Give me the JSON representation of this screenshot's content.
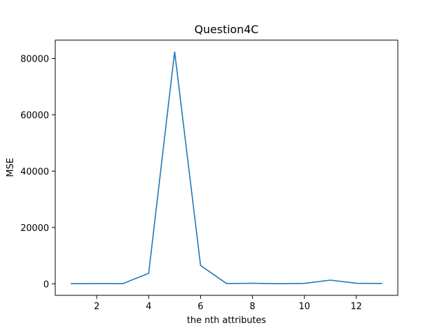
{
  "chart_data": {
    "type": "line",
    "title": "Question4C",
    "xlabel": "the nth attributes",
    "ylabel": "MSE",
    "xlim": [
      0.4,
      13.6
    ],
    "ylim": [
      -4100,
      86500
    ],
    "x_ticks": [
      2,
      4,
      6,
      8,
      10,
      12
    ],
    "y_ticks": [
      0,
      20000,
      40000,
      60000,
      80000
    ],
    "grid": false,
    "series": [
      {
        "color": "#1f77b4",
        "x": [
          1,
          2,
          3,
          4,
          5,
          6,
          7,
          8,
          9,
          10,
          11,
          12,
          13
        ],
        "y": [
          50,
          80,
          60,
          3700,
          82400,
          6500,
          100,
          200,
          30,
          150,
          1300,
          180,
          120
        ]
      }
    ]
  }
}
